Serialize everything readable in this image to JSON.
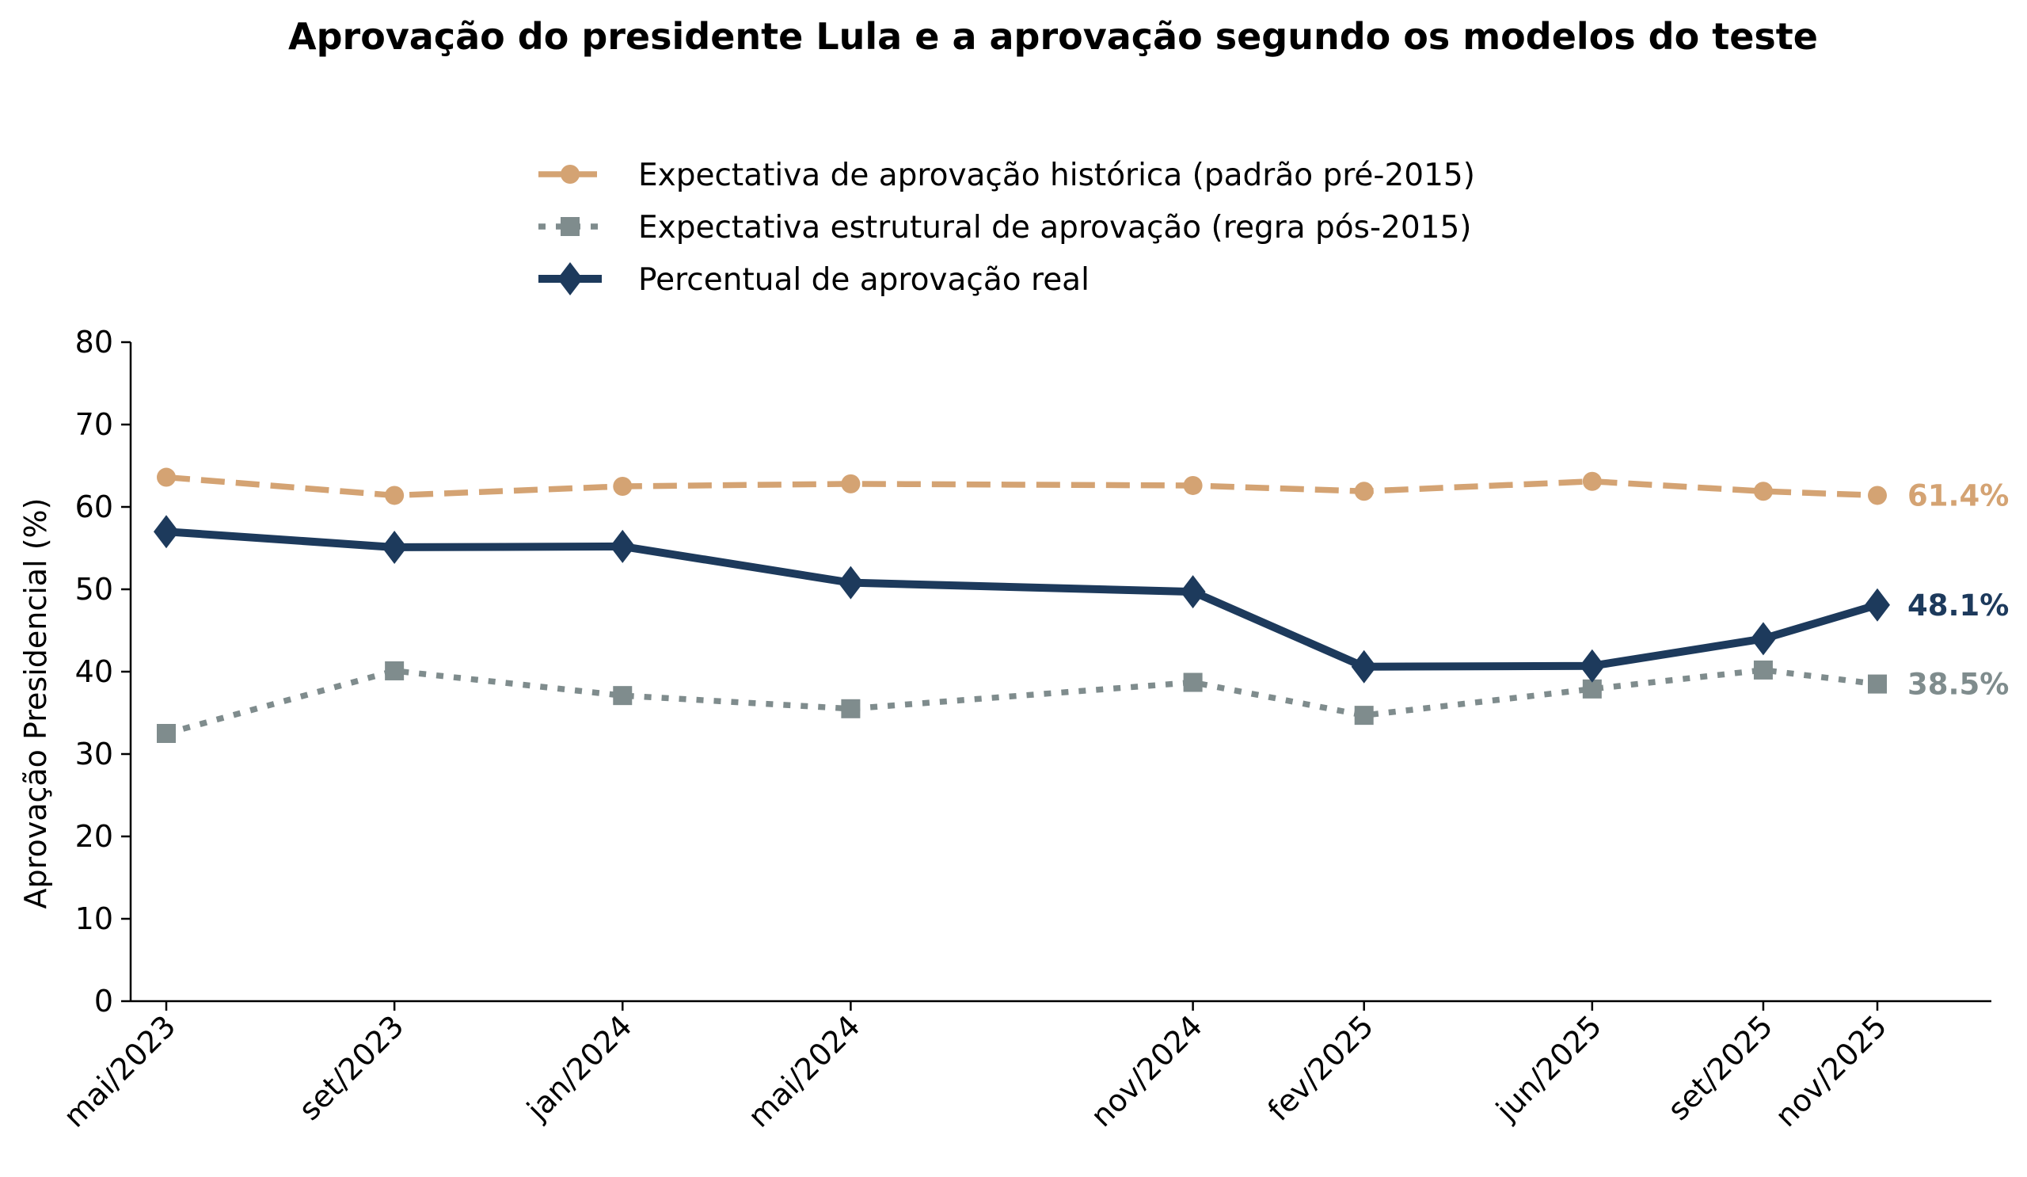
{
  "chart_data": {
    "type": "line",
    "title": "Aprovação do presidente Lula e a aprovação segundo os modelos do teste",
    "xlabel": "",
    "ylabel": "Aprovação Presidencial (%)",
    "ylim": [
      0,
      80
    ],
    "yticks": [
      0,
      10,
      20,
      30,
      40,
      50,
      60,
      70,
      80
    ],
    "grid": false,
    "legend_position": "top-center",
    "x": [
      "mai/2023",
      "set/2023",
      "jan/2024",
      "mai/2024",
      "nov/2024",
      "fev/2025",
      "jun/2025",
      "set/2025",
      "nov/2025"
    ],
    "x_month_index": [
      0,
      4,
      8,
      12,
      18,
      21,
      25,
      28,
      30
    ],
    "series": [
      {
        "name": "Expectativa de aprovação histórica (padrão pré-2015)",
        "key": "historica",
        "color": "#D4A373",
        "style": "dashed",
        "marker": "circle",
        "values": [
          63.6,
          61.4,
          62.5,
          62.8,
          62.6,
          61.9,
          63.1,
          61.9,
          61.4
        ],
        "end_label": "61.4%"
      },
      {
        "name": "Expectativa estrutural de aprovação (regra pós-2015)",
        "key": "estrutural",
        "color": "#7F8C8D",
        "style": "dotted",
        "marker": "square",
        "values": [
          32.5,
          40.1,
          37.1,
          35.5,
          38.7,
          34.7,
          37.9,
          40.2,
          38.5
        ],
        "end_label": "38.5%"
      },
      {
        "name": "Percentual de aprovação real",
        "key": "real",
        "color": "#1D3A5C",
        "style": "solid",
        "marker": "diamond",
        "values": [
          57.0,
          55.1,
          55.2,
          50.8,
          49.7,
          40.6,
          40.7,
          44.0,
          48.1
        ],
        "end_label": "48.1%"
      }
    ]
  }
}
